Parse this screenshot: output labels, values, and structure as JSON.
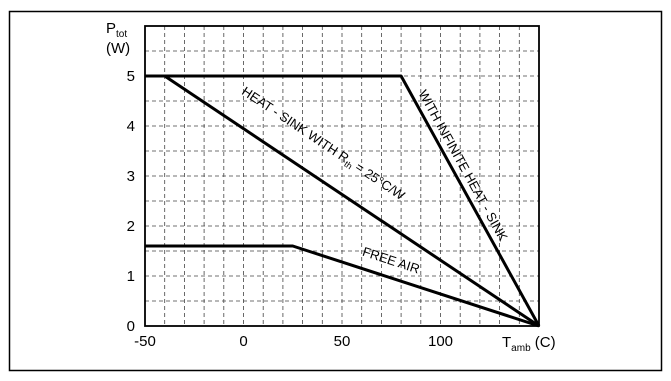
{
  "chart_data": {
    "type": "line",
    "x_axis": {
      "label_main": "T",
      "label_sub": "amb",
      "label_unit": " (C)",
      "range": [
        -50,
        150
      ],
      "ticks": [
        -50,
        0,
        50,
        100
      ],
      "tick_labels": [
        "-50",
        "0",
        "50",
        "100"
      ],
      "minor_grid_step": 10
    },
    "y_axis": {
      "label_main": "P",
      "label_sub": "tot",
      "label_unit": "(W)",
      "range": [
        0,
        6
      ],
      "ticks": [
        0,
        1,
        2,
        3,
        4,
        5
      ],
      "tick_labels": [
        "0",
        "1",
        "2",
        "3",
        "4",
        "5"
      ],
      "minor_grid_step": 0.5
    },
    "grid": true,
    "series": [
      {
        "id": "infinite",
        "label": "WITH INFINITE HEAT - SINK",
        "x": [
          -50,
          80,
          150
        ],
        "y": [
          5,
          5,
          0
        ]
      },
      {
        "id": "heatsink",
        "label_pre": "HEAT - SINK WITH R",
        "label_sub": "th",
        "label_post": " = 25°C/W",
        "x": [
          -40,
          150
        ],
        "y": [
          5,
          0
        ]
      },
      {
        "id": "freeair",
        "label": "FREE AIR",
        "x": [
          -50,
          25,
          150
        ],
        "y": [
          1.6,
          1.6,
          0
        ]
      }
    ]
  }
}
